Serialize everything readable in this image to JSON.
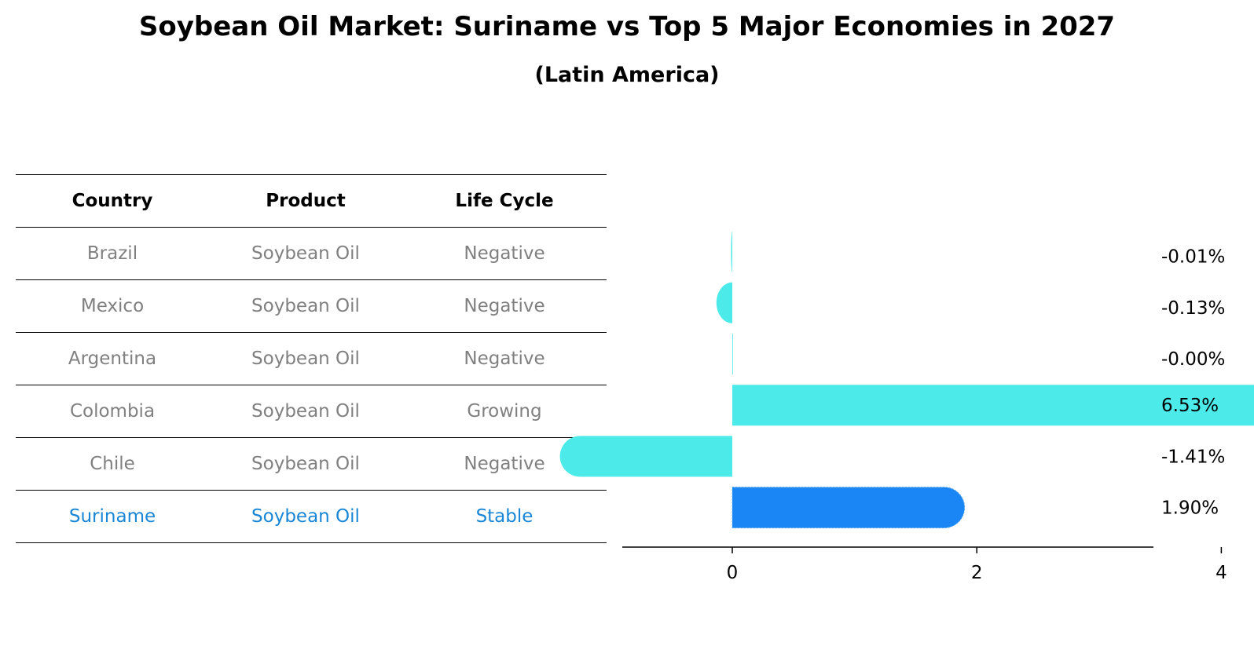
{
  "title": "Soybean Oil Market: Suriname vs Top 5 Major Economies in 2027",
  "subtitle": "(Latin America)",
  "table": {
    "headers": [
      "Country",
      "Product",
      "Life Cycle"
    ],
    "rows": [
      {
        "country": "Brazil",
        "product": "Soybean Oil",
        "life_cycle": "Negative"
      },
      {
        "country": "Mexico",
        "product": "Soybean Oil",
        "life_cycle": "Negative"
      },
      {
        "country": "Argentina",
        "product": "Soybean Oil",
        "life_cycle": "Negative"
      },
      {
        "country": "Colombia",
        "product": "Soybean Oil",
        "life_cycle": "Growing"
      },
      {
        "country": "Chile",
        "product": "Soybean Oil",
        "life_cycle": "Negative"
      },
      {
        "country": "Suriname",
        "product": "Soybean Oil",
        "life_cycle": "Stable"
      }
    ]
  },
  "chart_data": {
    "type": "bar",
    "orientation": "horizontal",
    "categories": [
      "Brazil",
      "Mexico",
      "Argentina",
      "Colombia",
      "Chile",
      "Suriname"
    ],
    "values": [
      -0.01,
      -0.13,
      -0.0,
      6.53,
      -1.41,
      1.9
    ],
    "data_labels": [
      "-0.01%",
      "-0.13%",
      "-0.00%",
      "6.53%",
      "-1.41%",
      "1.90%"
    ],
    "highlight_index": 5,
    "xlim": [
      -1.8,
      6.9
    ],
    "xticks": [
      0,
      2,
      4,
      6
    ],
    "grid": false,
    "colors": {
      "bar": "#4deaea",
      "highlight": "#1a86f5"
    }
  }
}
